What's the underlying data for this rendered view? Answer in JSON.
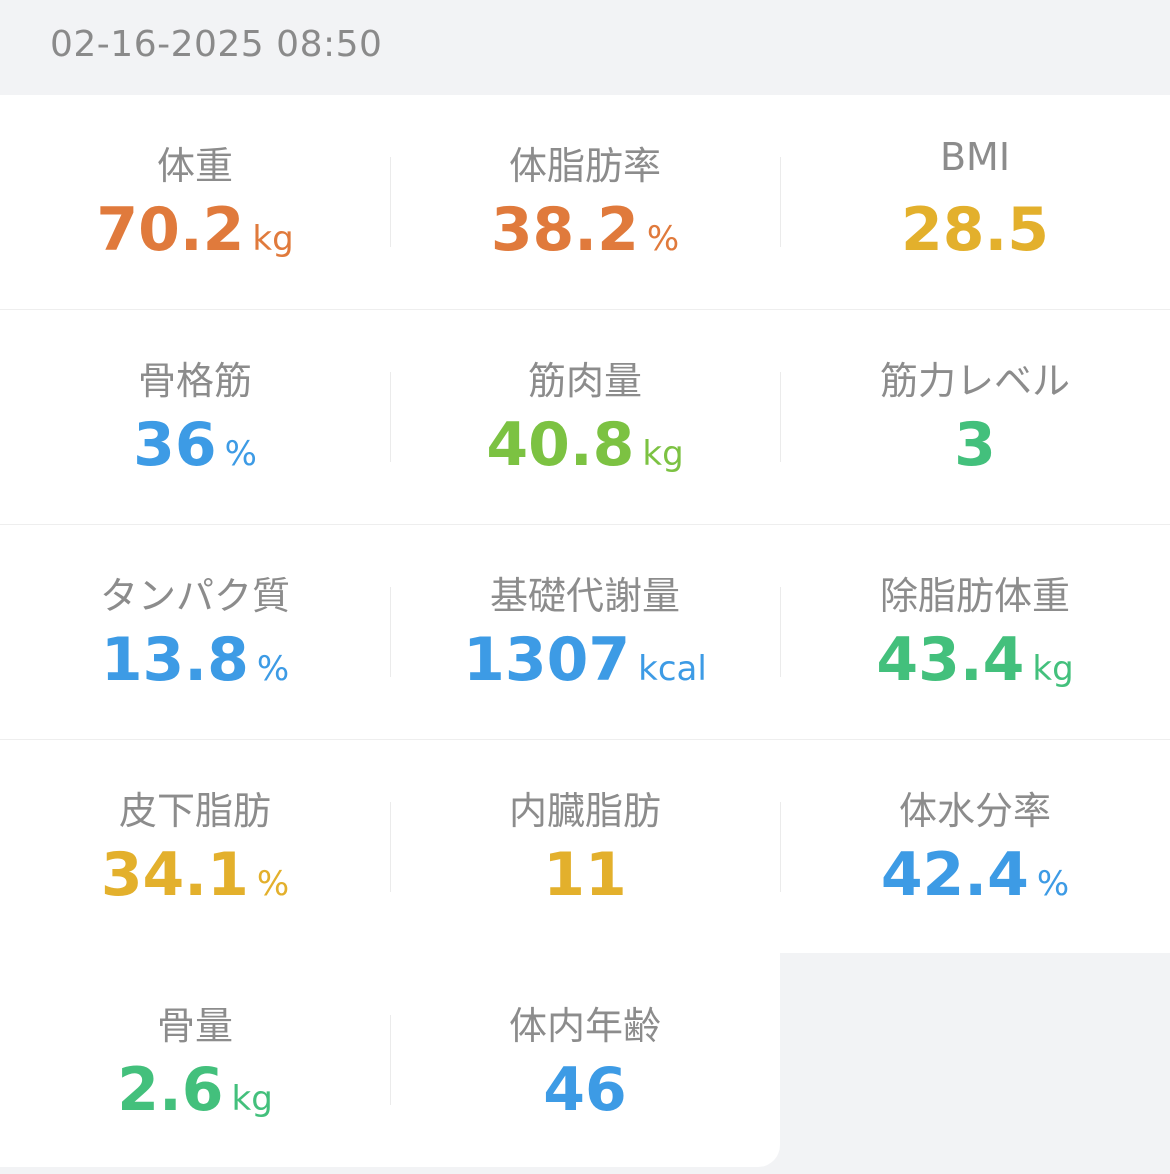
{
  "header": {
    "datetime": "02-16-2025 08:50"
  },
  "colors": {
    "orange": "#e07a3c",
    "yellow": "#e3b02c",
    "blue": "#3d9be5",
    "lime": "#7cc242",
    "green": "#43c07c",
    "label_gray": "#8c8c8c",
    "background": "#f2f3f5"
  },
  "metrics": [
    {
      "label": "体重",
      "value": "70.2",
      "unit": "kg",
      "color": "#e07a3c"
    },
    {
      "label": "体脂肪率",
      "value": "38.2",
      "unit": "%",
      "color": "#e07a3c"
    },
    {
      "label": "BMI",
      "value": "28.5",
      "unit": "",
      "color": "#e3b02c"
    },
    {
      "label": "骨格筋",
      "value": "36",
      "unit": "%",
      "color": "#3d9be5"
    },
    {
      "label": "筋肉量",
      "value": "40.8",
      "unit": "kg",
      "color": "#7cc242"
    },
    {
      "label": "筋力レベル",
      "value": "3",
      "unit": "",
      "color": "#43c07c"
    },
    {
      "label": "タンパク質",
      "value": "13.8",
      "unit": "%",
      "color": "#3d9be5"
    },
    {
      "label": "基礎代謝量",
      "value": "1307",
      "unit": "kcal",
      "color": "#3d9be5"
    },
    {
      "label": "除脂肪体重",
      "value": "43.4",
      "unit": "kg",
      "color": "#43c07c"
    },
    {
      "label": "皮下脂肪",
      "value": "34.1",
      "unit": "%",
      "color": "#e3b02c"
    },
    {
      "label": "内臓脂肪",
      "value": "11",
      "unit": "",
      "color": "#e3b02c"
    },
    {
      "label": "体水分率",
      "value": "42.4",
      "unit": "%",
      "color": "#3d9be5"
    },
    {
      "label": "骨量",
      "value": "2.6",
      "unit": "kg",
      "color": "#43c07c"
    },
    {
      "label": "体内年齢",
      "value": "46",
      "unit": "",
      "color": "#3d9be5"
    }
  ]
}
